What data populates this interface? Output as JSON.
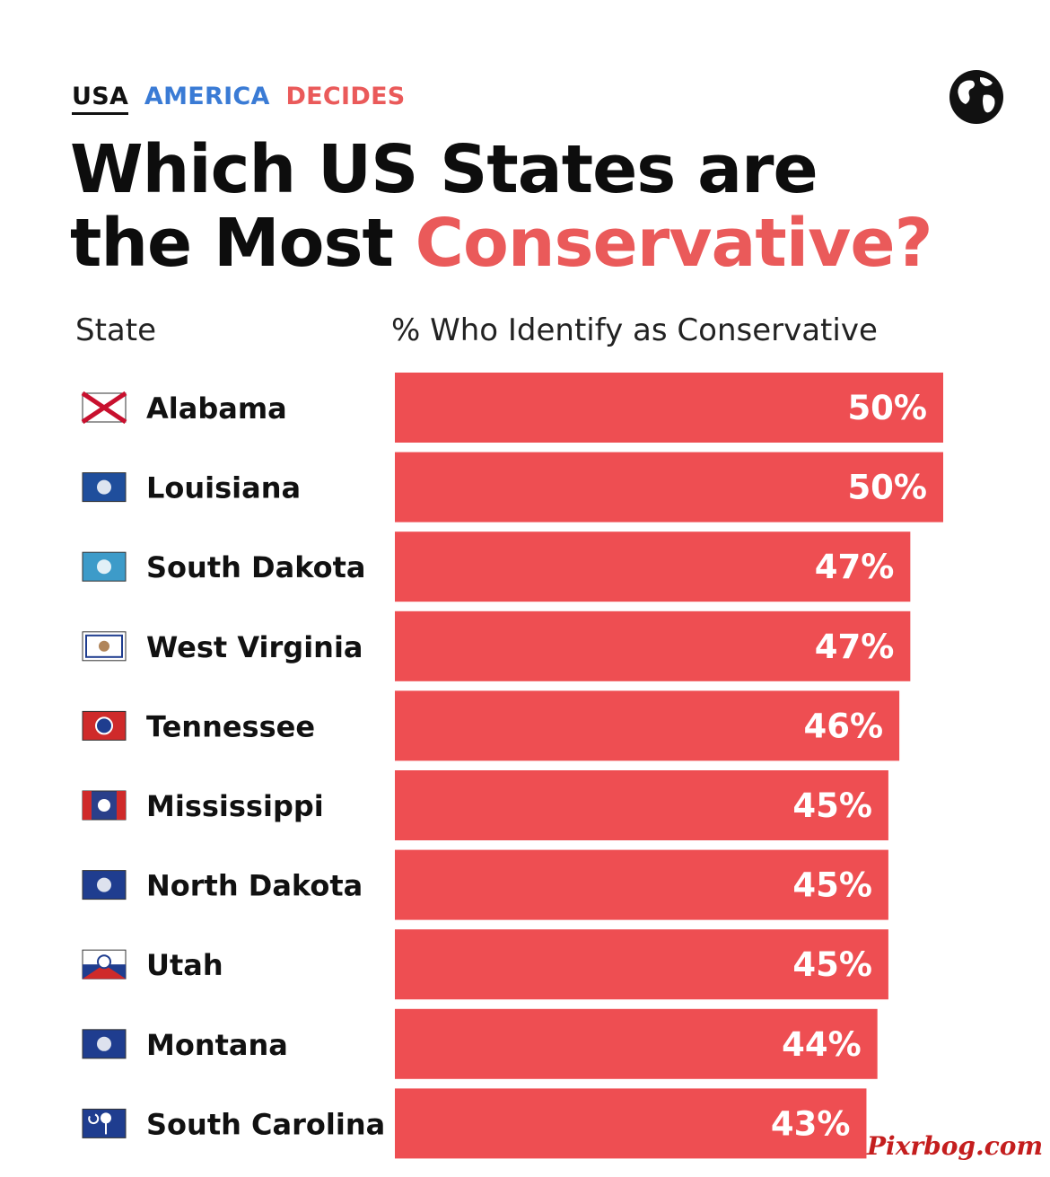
{
  "header": {
    "brand_usa": "USA",
    "brand_america": "AMERICA",
    "brand_decides": "DECIDES",
    "title_line1": "Which US States are",
    "title_line2_plain": "the Most ",
    "title_line2_highlight": "Conservative?",
    "globe_icon": "globe-icon"
  },
  "columns": {
    "state": "State",
    "metric": "% Who Identify as Conservative"
  },
  "colors": {
    "bar": "#ee4e52",
    "accent_red": "#ea5a5a",
    "accent_blue": "#3a7bd5"
  },
  "chart_data": {
    "type": "bar",
    "orientation": "horizontal",
    "categories": [
      "Alabama",
      "Louisiana",
      "South Dakota",
      "West Virginia",
      "Tennessee",
      "Mississippi",
      "North Dakota",
      "Utah",
      "Montana",
      "South Carolina"
    ],
    "values": [
      50,
      50,
      47,
      47,
      46,
      45,
      45,
      45,
      44,
      43
    ],
    "value_labels": [
      "50%",
      "50%",
      "47%",
      "47%",
      "46%",
      "45%",
      "45%",
      "45%",
      "44%",
      "43%"
    ],
    "xlabel": "% Who Identify as Conservative",
    "ylabel": "State",
    "xlim": [
      0,
      50
    ],
    "grid": false,
    "legend": "none",
    "flag_icons": [
      "alabama-flag-icon",
      "louisiana-flag-icon",
      "south-dakota-flag-icon",
      "west-virginia-flag-icon",
      "tennessee-flag-icon",
      "mississippi-flag-icon",
      "north-dakota-flag-icon",
      "utah-flag-icon",
      "montana-flag-icon",
      "south-carolina-flag-icon"
    ]
  },
  "watermark": "Pixrbog.com"
}
